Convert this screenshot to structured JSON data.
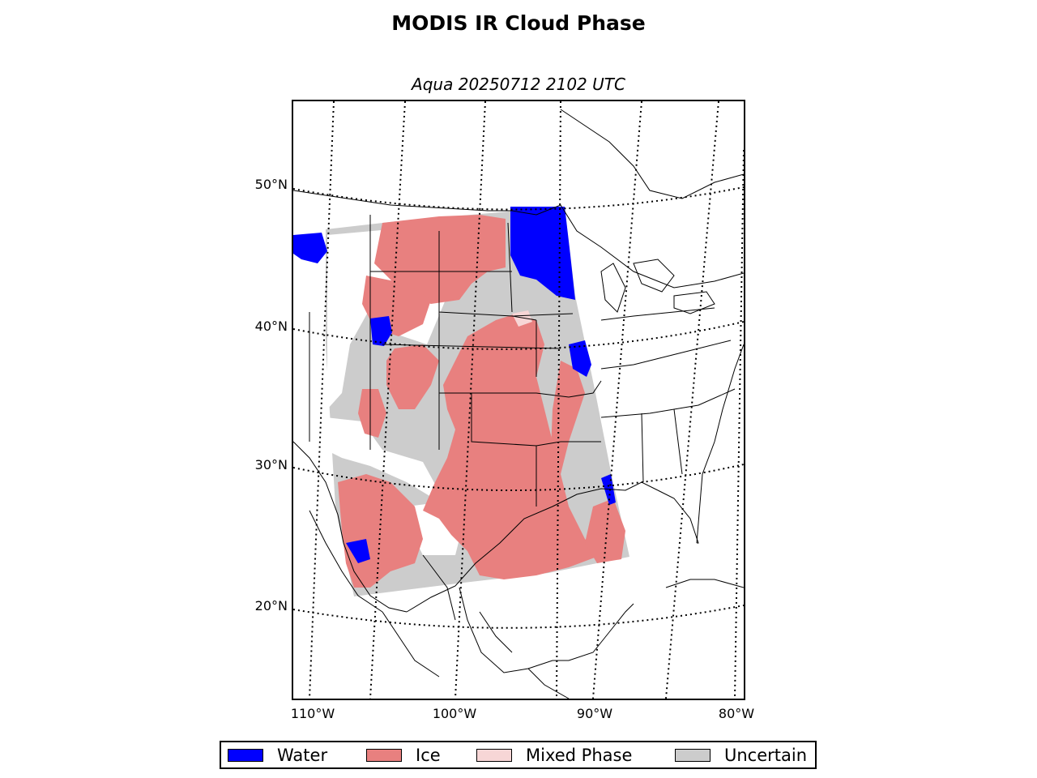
{
  "title": "MODIS IR Cloud Phase",
  "subtitle": "Aqua 20250712 2102 UTC",
  "latitude_labels": [
    "50°N",
    "40°N",
    "30°N",
    "20°N"
  ],
  "longitude_labels": [
    "110°W",
    "100°W",
    "90°W",
    "80°W"
  ],
  "legend": [
    {
      "label": "Water",
      "color": "#0000ff"
    },
    {
      "label": "Ice",
      "color": "#e8807f"
    },
    {
      "label": "Mixed Phase",
      "color": "#f7d6d6"
    },
    {
      "label": "Uncertain",
      "color": "#cccccc"
    }
  ],
  "colors": {
    "water": "#0000ff",
    "ice": "#e8807f",
    "mixed": "#f7d6d6",
    "uncertain": "#cccccc",
    "coastline": "#000000"
  }
}
